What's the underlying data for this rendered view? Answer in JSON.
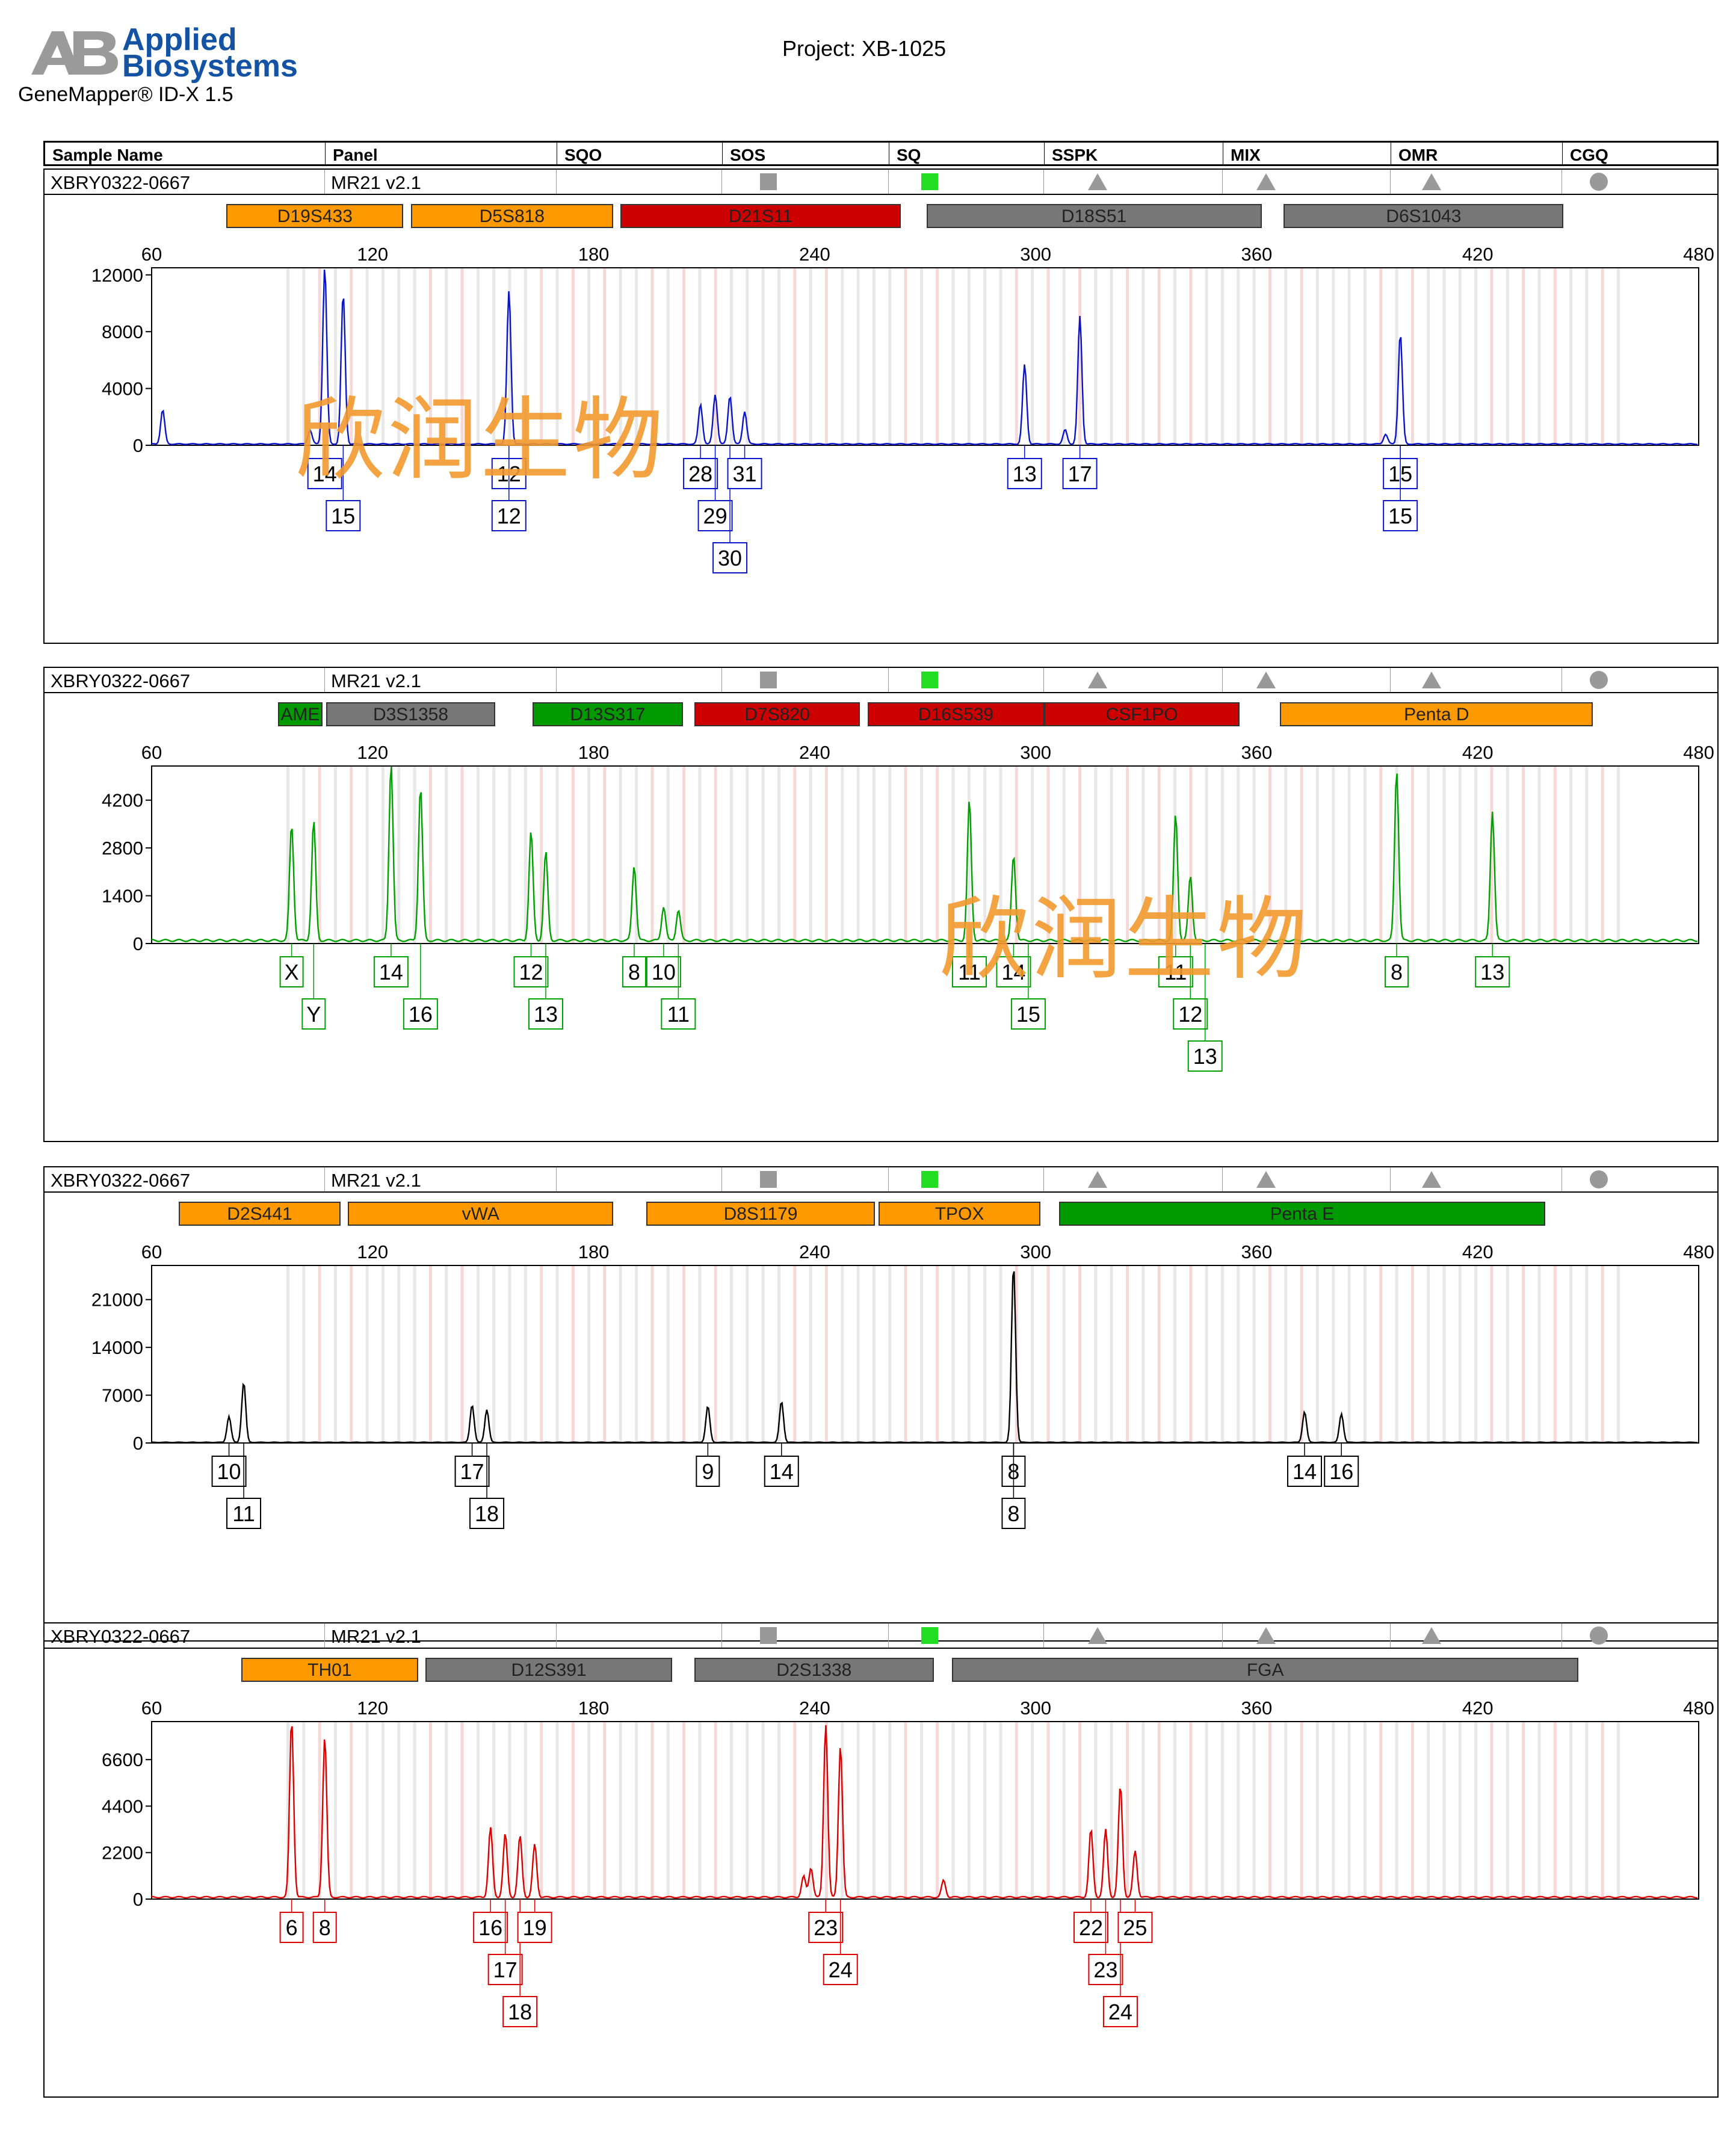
{
  "header": {
    "logo_line1": "Applied",
    "logo_line2": "Biosystems",
    "app_name": "GeneMapper® ID-X  1.5",
    "project": "Project: XB-1025",
    "brand_color": "#1452a3"
  },
  "columns": [
    "Sample Name",
    "Panel",
    "SQO",
    "SOS",
    "SQ",
    "SSPK",
    "MIX",
    "OMR",
    "CGQ"
  ],
  "watermark": "欣润生物",
  "panels": [
    {
      "sample": "XBRY0322-0667",
      "panel": "MR21  v2.1",
      "color": "#0a14c8",
      "xticks": [
        60,
        120,
        180,
        240,
        300,
        360,
        420,
        480
      ],
      "yticks": [
        0,
        4000,
        8000,
        12000
      ],
      "ymax": 12500,
      "markers": [
        {
          "name": "D19S433",
          "start": 80,
          "end": 128,
          "color": "#ff9900"
        },
        {
          "name": "D5S818",
          "start": 130,
          "end": 185,
          "color": "#ff9900"
        },
        {
          "name": "D21S11",
          "start": 187,
          "end": 263,
          "color": "#cc0000"
        },
        {
          "name": "D18S51",
          "start": 270,
          "end": 361,
          "color": "#777777"
        },
        {
          "name": "D6S1043",
          "start": 367,
          "end": 443,
          "color": "#777777"
        }
      ],
      "peaks": [
        [
          63,
          2400
        ],
        [
          103,
          1000
        ],
        [
          107,
          12500
        ],
        [
          112,
          10600
        ],
        [
          157,
          10800
        ],
        [
          209,
          2800
        ],
        [
          213,
          3500
        ],
        [
          217,
          3400
        ],
        [
          221,
          2300
        ],
        [
          297,
          5600
        ],
        [
          308,
          1000
        ],
        [
          312,
          9000
        ],
        [
          395,
          700
        ],
        [
          399,
          7800
        ]
      ],
      "labels": [
        {
          "text": "14",
          "x": 107,
          "row": 0
        },
        {
          "text": "15",
          "x": 112,
          "row": 1
        },
        {
          "text": "12",
          "x": 157,
          "row": 0
        },
        {
          "text": "12",
          "x": 157,
          "row": 1
        },
        {
          "text": "28",
          "x": 209,
          "row": 0
        },
        {
          "text": "29",
          "x": 213,
          "row": 1
        },
        {
          "text": "30",
          "x": 217,
          "row": 2
        },
        {
          "text": "31",
          "x": 221,
          "row": 0
        },
        {
          "text": "13",
          "x": 297,
          "row": 0
        },
        {
          "text": "17",
          "x": 312,
          "row": 0
        },
        {
          "text": "15",
          "x": 399,
          "row": 0
        },
        {
          "text": "15",
          "x": 399,
          "row": 1
        }
      ]
    },
    {
      "sample": "XBRY0322-0667",
      "panel": "MR21  v2.1",
      "color": "#00a000",
      "xticks": [
        60,
        120,
        180,
        240,
        300,
        360,
        420,
        480
      ],
      "yticks": [
        0,
        1400,
        2800,
        4200
      ],
      "ymax": 5200,
      "markers": [
        {
          "name": "AME",
          "start": 94,
          "end": 106,
          "color": "#009900"
        },
        {
          "name": "D3S1358",
          "start": 107,
          "end": 153,
          "color": "#777777"
        },
        {
          "name": "D13S317",
          "start": 163,
          "end": 204,
          "color": "#009900"
        },
        {
          "name": "D7S820",
          "start": 207,
          "end": 252,
          "color": "#cc0000"
        },
        {
          "name": "D16S539",
          "start": 254,
          "end": 302,
          "color": "#cc0000"
        },
        {
          "name": "CSF1PO",
          "start": 302,
          "end": 355,
          "color": "#cc0000"
        },
        {
          "name": "Penta D",
          "start": 366,
          "end": 451,
          "color": "#ff9900"
        }
      ],
      "peaks": [
        [
          98,
          3400
        ],
        [
          104,
          3500
        ],
        [
          125,
          5200
        ],
        [
          133,
          4500
        ],
        [
          163,
          3200
        ],
        [
          167,
          2600
        ],
        [
          191,
          2200
        ],
        [
          199,
          1000
        ],
        [
          203,
          900
        ],
        [
          282,
          4100
        ],
        [
          294,
          2500
        ],
        [
          338,
          3700
        ],
        [
          342,
          1900
        ],
        [
          398,
          5000
        ],
        [
          424,
          3800
        ]
      ],
      "labels": [
        {
          "text": "X",
          "x": 98,
          "row": 0
        },
        {
          "text": "Y",
          "x": 104,
          "row": 1
        },
        {
          "text": "14",
          "x": 125,
          "row": 0
        },
        {
          "text": "16",
          "x": 133,
          "row": 1
        },
        {
          "text": "12",
          "x": 163,
          "row": 0
        },
        {
          "text": "13",
          "x": 167,
          "row": 1
        },
        {
          "text": "8",
          "x": 191,
          "row": 0
        },
        {
          "text": "10",
          "x": 199,
          "row": 0
        },
        {
          "text": "11",
          "x": 203,
          "row": 1
        },
        {
          "text": "11",
          "x": 282,
          "row": 0
        },
        {
          "text": "14",
          "x": 294,
          "row": 0
        },
        {
          "text": "15",
          "x": 298,
          "row": 1
        },
        {
          "text": "11",
          "x": 338,
          "row": 0
        },
        {
          "text": "12",
          "x": 342,
          "row": 1
        },
        {
          "text": "13",
          "x": 346,
          "row": 2
        },
        {
          "text": "8",
          "x": 398,
          "row": 0
        },
        {
          "text": "13",
          "x": 424,
          "row": 0
        }
      ]
    },
    {
      "sample": "XBRY0322-0667",
      "panel": "MR21  v2.1",
      "color": "#000000",
      "xticks": [
        60,
        120,
        180,
        240,
        300,
        360,
        420,
        480
      ],
      "yticks": [
        0,
        7000,
        14000,
        21000
      ],
      "ymax": 26000,
      "markers": [
        {
          "name": "D2S441",
          "start": 67,
          "end": 111,
          "color": "#ff9900"
        },
        {
          "name": "vWA",
          "start": 113,
          "end": 185,
          "color": "#ff9900"
        },
        {
          "name": "D8S1179",
          "start": 194,
          "end": 256,
          "color": "#ff9900"
        },
        {
          "name": "TPOX",
          "start": 257,
          "end": 301,
          "color": "#ff9900"
        },
        {
          "name": "Penta E",
          "start": 306,
          "end": 438,
          "color": "#009900"
        }
      ],
      "peaks": [
        [
          81,
          3800
        ],
        [
          85,
          8800
        ],
        [
          147,
          5500
        ],
        [
          151,
          4800
        ],
        [
          211,
          5300
        ],
        [
          231,
          6000
        ],
        [
          294,
          26000
        ],
        [
          373,
          4500
        ],
        [
          383,
          4200
        ]
      ],
      "labels": [
        {
          "text": "10",
          "x": 81,
          "row": 0
        },
        {
          "text": "11",
          "x": 85,
          "row": 1
        },
        {
          "text": "17",
          "x": 147,
          "row": 0
        },
        {
          "text": "18",
          "x": 151,
          "row": 1
        },
        {
          "text": "9",
          "x": 211,
          "row": 0
        },
        {
          "text": "14",
          "x": 231,
          "row": 0
        },
        {
          "text": "8",
          "x": 294,
          "row": 0
        },
        {
          "text": "8",
          "x": 294,
          "row": 1
        },
        {
          "text": "14",
          "x": 373,
          "row": 0
        },
        {
          "text": "16",
          "x": 383,
          "row": 0
        }
      ]
    },
    {
      "sample": "XBRY0322-0667",
      "panel": "MR21  v2.1",
      "color": "#dd0000",
      "xticks": [
        60,
        120,
        180,
        240,
        300,
        360,
        420,
        480
      ],
      "yticks": [
        0,
        2200,
        4400,
        6600
      ],
      "ymax": 8400,
      "markers": [
        {
          "name": "TH01",
          "start": 84,
          "end": 132,
          "color": "#ff9900"
        },
        {
          "name": "D12S391",
          "start": 134,
          "end": 201,
          "color": "#777777"
        },
        {
          "name": "D2S1338",
          "start": 207,
          "end": 272,
          "color": "#777777"
        },
        {
          "name": "FGA",
          "start": 277,
          "end": 447,
          "color": "#777777"
        }
      ],
      "peaks": [
        [
          98,
          8400
        ],
        [
          107,
          7600
        ],
        [
          152,
          3300
        ],
        [
          156,
          3000
        ],
        [
          160,
          2900
        ],
        [
          164,
          2500
        ],
        [
          237,
          1000
        ],
        [
          239,
          1400
        ],
        [
          243,
          8200
        ],
        [
          247,
          7200
        ],
        [
          275,
          800
        ],
        [
          315,
          3200
        ],
        [
          319,
          3200
        ],
        [
          323,
          5300
        ],
        [
          327,
          2200
        ]
      ],
      "labels": [
        {
          "text": "6",
          "x": 98,
          "row": 0
        },
        {
          "text": "8",
          "x": 107,
          "row": 0
        },
        {
          "text": "16",
          "x": 152,
          "row": 0
        },
        {
          "text": "17",
          "x": 156,
          "row": 1
        },
        {
          "text": "18",
          "x": 160,
          "row": 2
        },
        {
          "text": "19",
          "x": 164,
          "row": 0
        },
        {
          "text": "23",
          "x": 243,
          "row": 0
        },
        {
          "text": "24",
          "x": 247,
          "row": 1
        },
        {
          "text": "22",
          "x": 315,
          "row": 0
        },
        {
          "text": "23",
          "x": 319,
          "row": 1
        },
        {
          "text": "24",
          "x": 323,
          "row": 2
        },
        {
          "text": "25",
          "x": 327,
          "row": 0
        }
      ]
    }
  ]
}
